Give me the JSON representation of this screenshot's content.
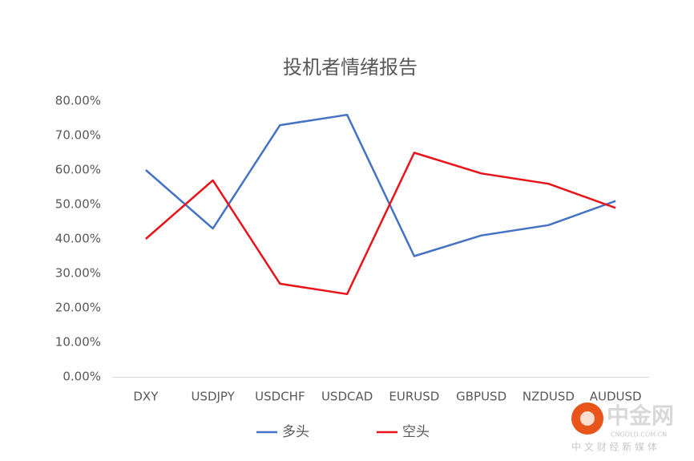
{
  "chart_data": {
    "type": "line",
    "title": "投机者情绪报告",
    "categories": [
      "DXY",
      "USDJPY",
      "USDCHF",
      "USDCAD",
      "EURUSD",
      "GBPUSD",
      "NZDUSD",
      "AUDUSD"
    ],
    "series": [
      {
        "name": "多头",
        "color": "#4472c4",
        "values": [
          60,
          43,
          73,
          76,
          35,
          41,
          44,
          51
        ]
      },
      {
        "name": "空头",
        "color": "#e8141a",
        "values": [
          40,
          57,
          27,
          24,
          65,
          59,
          56,
          49
        ]
      }
    ],
    "ylim": [
      0,
      80
    ],
    "yticks": [
      {
        "value": 0,
        "label": "0.00%"
      },
      {
        "value": 10,
        "label": "10.00%"
      },
      {
        "value": 20,
        "label": "20.00%"
      },
      {
        "value": 30,
        "label": "30.00%"
      },
      {
        "value": 40,
        "label": "40.00%"
      },
      {
        "value": 50,
        "label": "50.00%"
      },
      {
        "value": 60,
        "label": "60.00%"
      },
      {
        "value": 70,
        "label": "70.00%"
      },
      {
        "value": 80,
        "label": "80.00%"
      }
    ],
    "grid": false,
    "legend": "bottom"
  },
  "watermark": {
    "name": "中金网",
    "site": "CNGOLD.COM.CN",
    "slogan": "中 文 财 经 新 媒 体"
  }
}
